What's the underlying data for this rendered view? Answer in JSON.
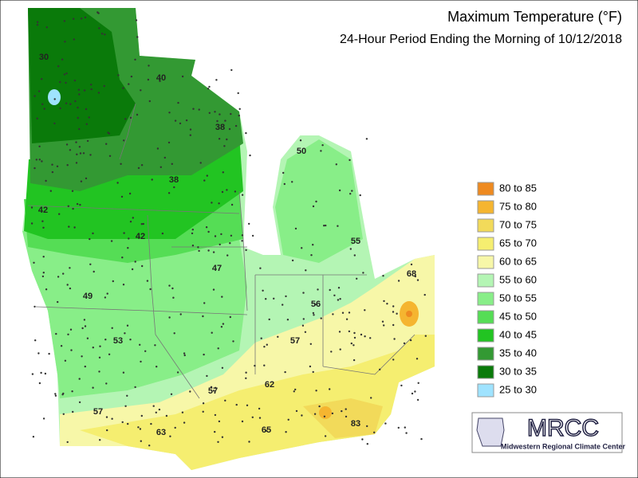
{
  "header": {
    "title": "Maximum Temperature (°F)",
    "subtitle": "24-Hour Period Ending the Morning of 10/12/2018"
  },
  "legend": [
    {
      "label": "80 to 85",
      "color": "#ee8a20"
    },
    {
      "label": "75 to 80",
      "color": "#f5b530"
    },
    {
      "label": "70 to 75",
      "color": "#f2da5a"
    },
    {
      "label": "65 to 70",
      "color": "#f5ee70"
    },
    {
      "label": "60 to 65",
      "color": "#f7f7a8"
    },
    {
      "label": "55 to 60",
      "color": "#b4f5b4"
    },
    {
      "label": "50 to 55",
      "color": "#88ee88"
    },
    {
      "label": "45 to 50",
      "color": "#55dd55"
    },
    {
      "label": "40 to 45",
      "color": "#22c422"
    },
    {
      "label": "35 to 40",
      "color": "#339933"
    },
    {
      "label": "30 to 35",
      "color": "#0a7a0a"
    },
    {
      "label": "25 to 30",
      "color": "#9fe3ff"
    }
  ],
  "labels": [
    30,
    40,
    38,
    50,
    38,
    42,
    42,
    55,
    47,
    68,
    49,
    56,
    53,
    57,
    62,
    57,
    57,
    83,
    65,
    63
  ],
  "logo": {
    "name": "MRCC",
    "tagline": "Midwestern Regional Climate Center"
  }
}
